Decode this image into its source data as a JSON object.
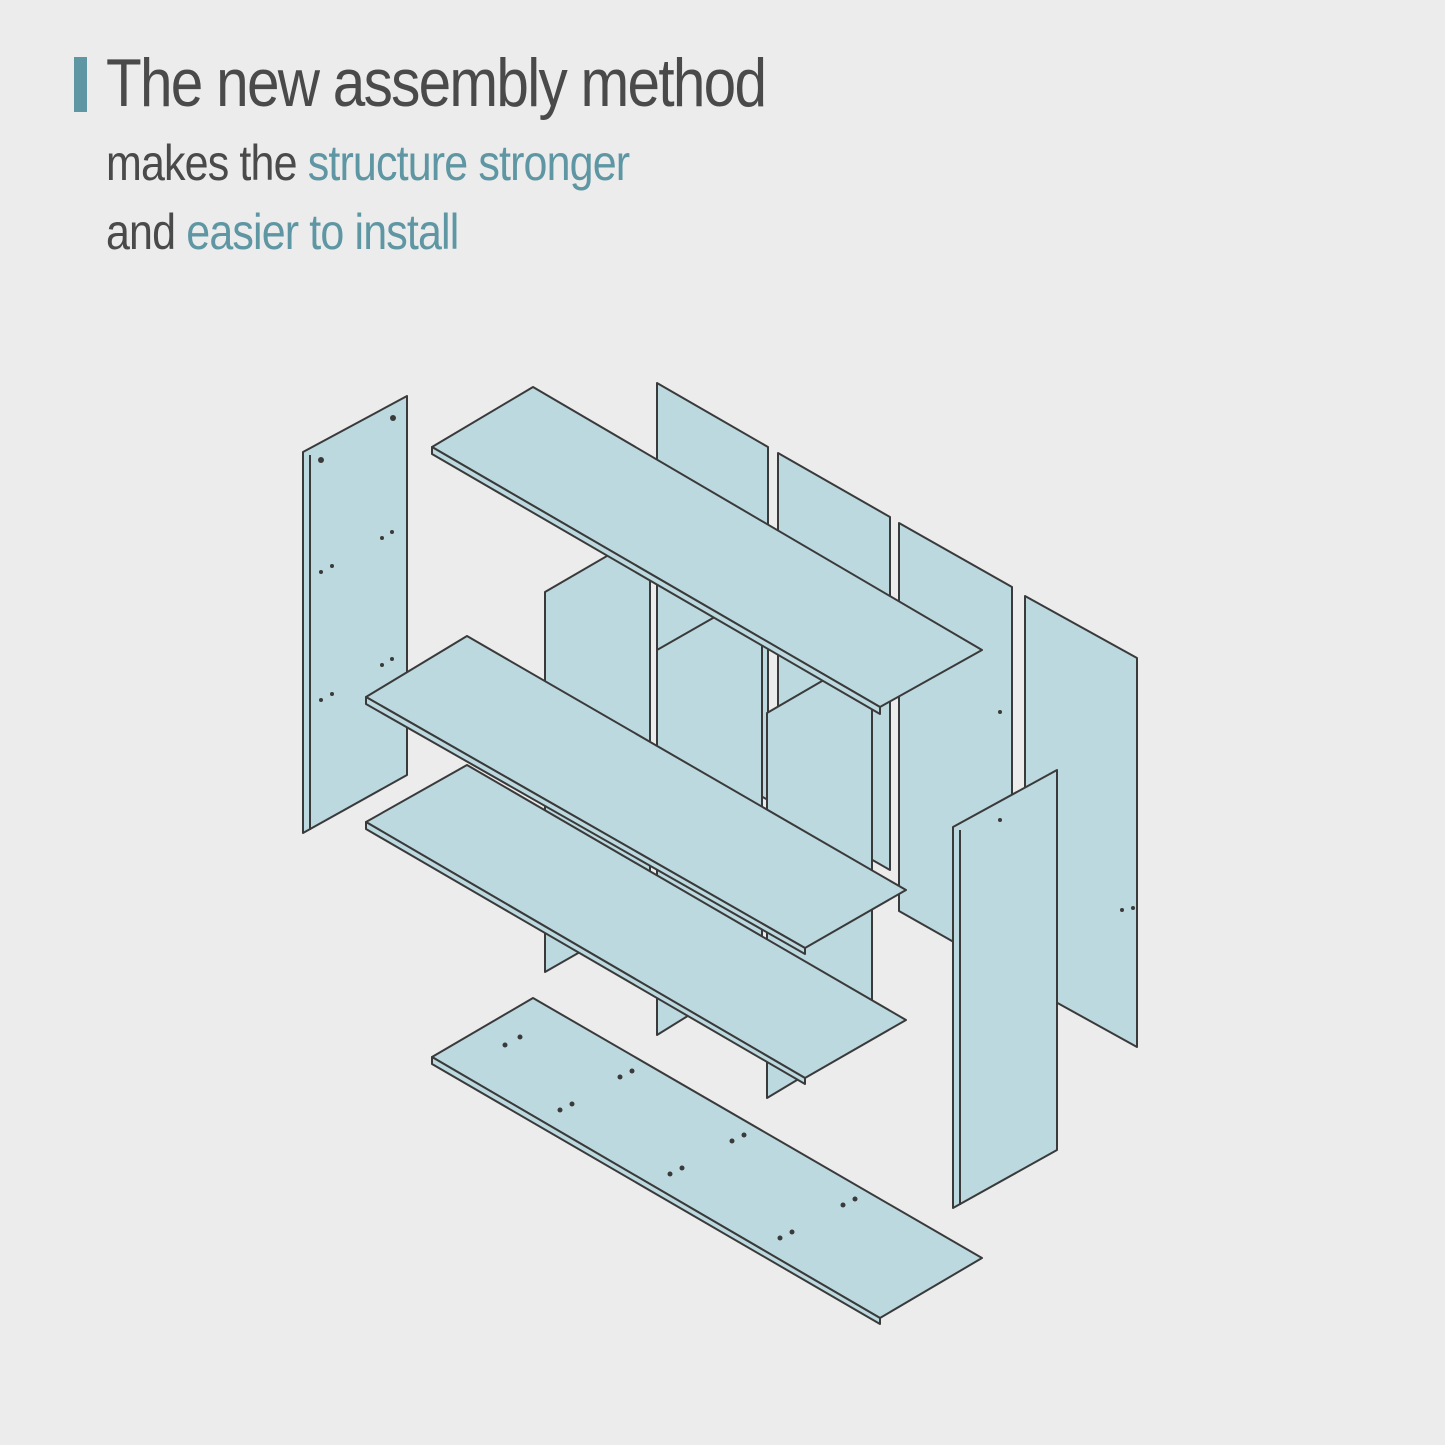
{
  "heading": {
    "title": "The new assembly method",
    "line2_plain": "makes the ",
    "line2_highlight": "structure stronger",
    "line3_plain": "and ",
    "line3_highlight": "easier to install"
  },
  "colors": {
    "background": "#ececec",
    "text": "#4a4a4a",
    "accent": "#5e97a3",
    "panel_fill": "#bcd9df",
    "outline": "#3a3a3a"
  },
  "diagram": {
    "type": "exploded isometric bookshelf assembly",
    "parts": [
      "back-panel",
      "back-panel",
      "back-panel",
      "back-panel",
      "left-side-panel",
      "divider",
      "divider",
      "divider",
      "lower-shelf",
      "middle-shelf",
      "top-shelf",
      "right-side-panel",
      "bottom-panel"
    ]
  }
}
